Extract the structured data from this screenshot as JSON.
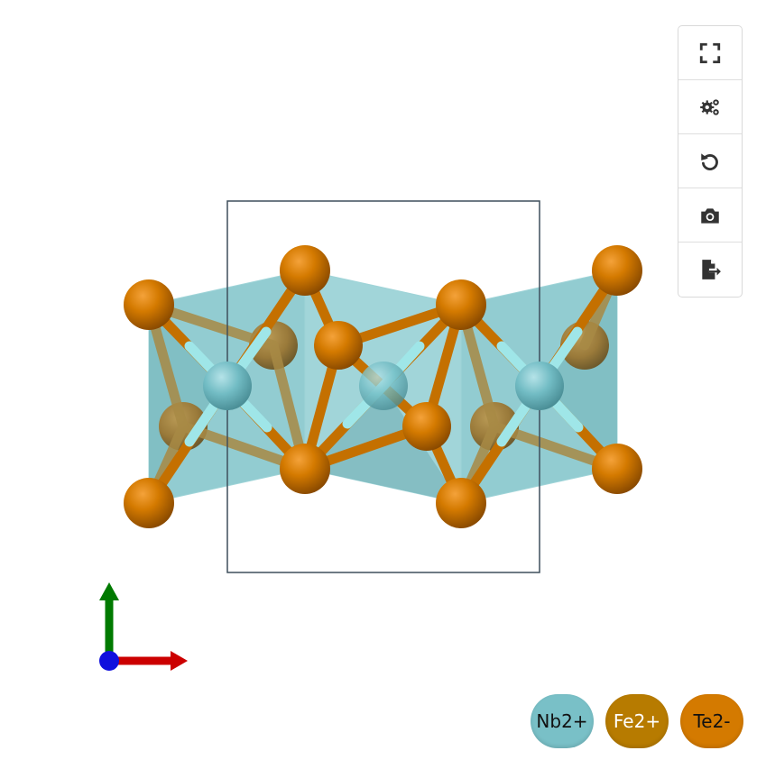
{
  "toolbar": {
    "buttons": [
      {
        "icon": "fullscreen-icon"
      },
      {
        "icon": "settings-gears-icon"
      },
      {
        "icon": "reset-rotate-icon"
      },
      {
        "icon": "camera-icon"
      },
      {
        "icon": "export-file-icon"
      }
    ]
  },
  "legend": {
    "items": [
      {
        "label": "Nb2+",
        "color": "#79c0c7",
        "text_color": "#111111"
      },
      {
        "label": "Fe2+",
        "color": "#b77b00",
        "text_color": "#ffffff"
      },
      {
        "label": "Te2-",
        "color": "#d47a00",
        "text_color": "#111111"
      }
    ]
  },
  "colors": {
    "polyhedron": "#7fc3c9",
    "cell_edge": "#3e4f5c",
    "bond_te": "#c47000",
    "bond_nb": "#9fe6e8",
    "axis_x": "#cc0000",
    "axis_y": "#007a00",
    "axis_origin": "#1010dd"
  }
}
